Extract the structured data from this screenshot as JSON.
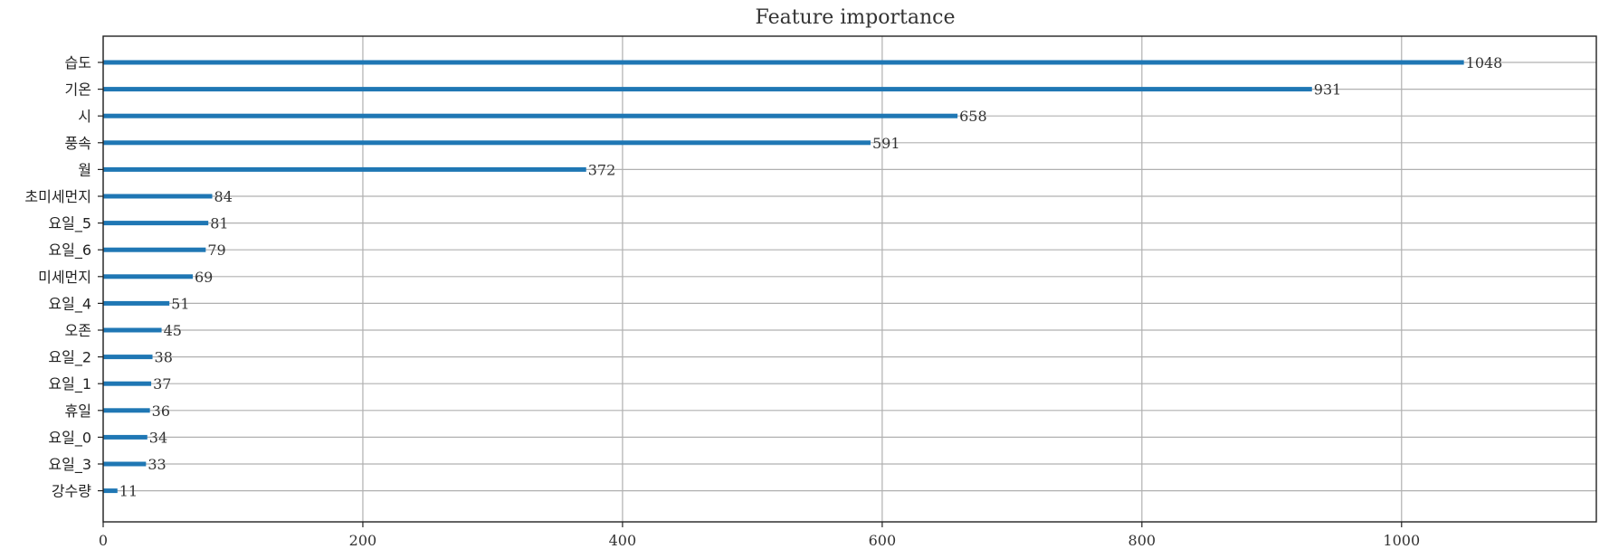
{
  "chart_data": {
    "type": "bar",
    "orientation": "horizontal",
    "title": "Feature importance",
    "xlabel": "",
    "ylabel": "",
    "xlim": [
      0,
      1150
    ],
    "xticks": [
      0,
      200,
      400,
      600,
      800,
      1000
    ],
    "grid": true,
    "bar_color": "#1f77b4",
    "categories": [
      "습도",
      "기온",
      "시",
      "풍속",
      "월",
      "초미세먼지",
      "요일_5",
      "요일_6",
      "미세먼지",
      "요일_4",
      "오존",
      "요일_2",
      "요일_1",
      "휴일",
      "요일_0",
      "요일_3",
      "강수량"
    ],
    "values": [
      1048,
      931,
      658,
      591,
      372,
      84,
      81,
      79,
      69,
      51,
      45,
      38,
      37,
      36,
      34,
      33,
      11
    ]
  }
}
